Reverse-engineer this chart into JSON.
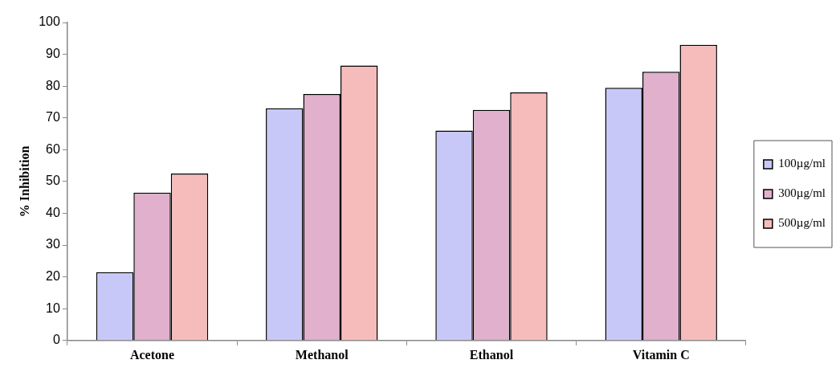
{
  "chart_data": {
    "type": "bar",
    "ylabel": "% Inhibition",
    "categories": [
      "Acetone",
      "Methanol",
      "Ethanol",
      "Vitamin C"
    ],
    "series": [
      {
        "name": "100µg/ml",
        "color": "#c8c8f8",
        "values": [
          21.5,
          73,
          66,
          79.5
        ]
      },
      {
        "name": "300µg/ml",
        "color": "#e0b0cc",
        "values": [
          46.5,
          77.5,
          72.5,
          84.5
        ]
      },
      {
        "name": "500µg/ml",
        "color": "#f6bcbc",
        "values": [
          52.5,
          86.5,
          78,
          93
        ]
      }
    ],
    "ylim": [
      0,
      100
    ],
    "yticks": [
      0,
      10,
      20,
      30,
      40,
      50,
      60,
      70,
      80,
      90,
      100
    ],
    "grid": false,
    "legend": "right"
  }
}
